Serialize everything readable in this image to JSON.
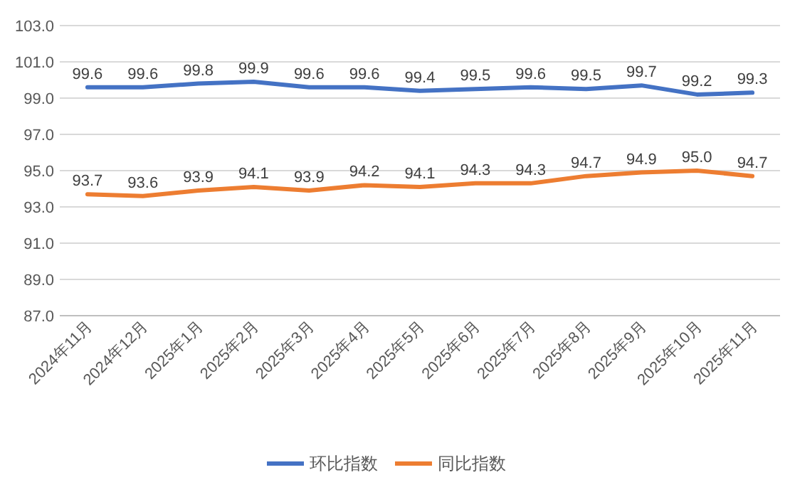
{
  "chart_data": {
    "type": "line",
    "categories": [
      "2024年11月",
      "2024年12月",
      "2025年1月",
      "2025年2月",
      "2025年3月",
      "2025年4月",
      "2025年5月",
      "2025年6月",
      "2025年7月",
      "2025年8月",
      "2025年9月",
      "2025年10月",
      "2025年11月"
    ],
    "series": [
      {
        "name": "环比指数",
        "color": "#4472c4",
        "values": [
          99.6,
          99.6,
          99.8,
          99.9,
          99.6,
          99.6,
          99.4,
          99.5,
          99.6,
          99.5,
          99.7,
          99.2,
          99.3
        ],
        "value_labels": [
          "99.6",
          "99.6",
          "99.8",
          "99.9",
          "99.6",
          "99.6",
          "99.4",
          "99.5",
          "99.6",
          "99.5",
          "99.7",
          "99.2",
          "99.3"
        ]
      },
      {
        "name": "同比指数",
        "color": "#ed7d31",
        "values": [
          93.7,
          93.6,
          93.9,
          94.1,
          93.9,
          94.2,
          94.1,
          94.3,
          94.3,
          94.7,
          94.9,
          95.0,
          94.7
        ],
        "value_labels": [
          "93.7",
          "93.6",
          "93.9",
          "94.1",
          "93.9",
          "94.2",
          "94.1",
          "94.3",
          "94.3",
          "94.7",
          "94.9",
          "95.0",
          "94.7"
        ]
      }
    ],
    "ylim": [
      87,
      103
    ],
    "yticks": [
      {
        "value": 87,
        "label": "87.0"
      },
      {
        "value": 89,
        "label": "89.0"
      },
      {
        "value": 91,
        "label": "91.0"
      },
      {
        "value": 93,
        "label": "93.0"
      },
      {
        "value": 95,
        "label": "95.0"
      },
      {
        "value": 97,
        "label": "97.0"
      },
      {
        "value": 99,
        "label": "99.0"
      },
      {
        "value": 101,
        "label": "101.0"
      },
      {
        "value": 103,
        "label": "103.0"
      }
    ],
    "grid": "y",
    "legend": "bottom"
  }
}
